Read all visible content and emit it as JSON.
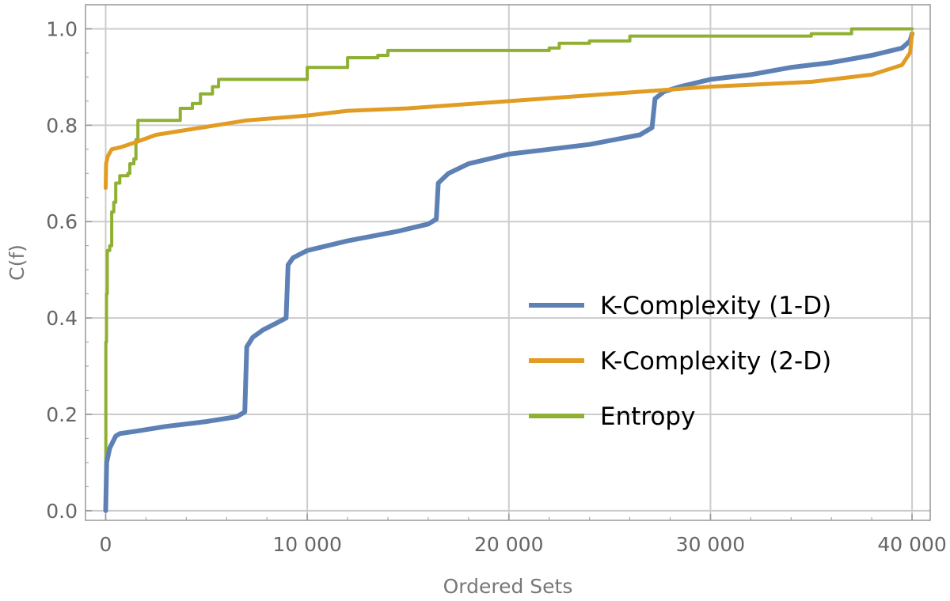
{
  "chart_data": {
    "type": "line",
    "title": "",
    "xlabel": "Ordered Sets",
    "ylabel": "C(f)",
    "xlim": [
      -1000,
      40900
    ],
    "ylim": [
      -0.02,
      1.05
    ],
    "grid": true,
    "legend_position": "right",
    "x_ticks": [
      0,
      10000,
      20000,
      30000,
      40000
    ],
    "x_tick_labels": [
      "0",
      "10 000",
      "20 000",
      "30 000",
      "40 000"
    ],
    "y_ticks": [
      0.0,
      0.2,
      0.4,
      0.6,
      0.8,
      1.0
    ],
    "y_tick_labels": [
      "0.0",
      "0.2",
      "0.4",
      "0.6",
      "0.8",
      "1.0"
    ],
    "series": [
      {
        "name": "K-Complexity (1-D)",
        "color": "#5e81b5",
        "step": false,
        "points": [
          [
            0,
            0
          ],
          [
            50,
            0.1
          ],
          [
            200,
            0.13
          ],
          [
            500,
            0.155
          ],
          [
            700,
            0.16
          ],
          [
            1500,
            0.165
          ],
          [
            3000,
            0.175
          ],
          [
            5000,
            0.185
          ],
          [
            6500,
            0.195
          ],
          [
            6900,
            0.205
          ],
          [
            7000,
            0.34
          ],
          [
            7300,
            0.36
          ],
          [
            7800,
            0.375
          ],
          [
            8500,
            0.39
          ],
          [
            8950,
            0.4
          ],
          [
            9050,
            0.51
          ],
          [
            9300,
            0.525
          ],
          [
            10000,
            0.54
          ],
          [
            12000,
            0.56
          ],
          [
            14500,
            0.58
          ],
          [
            16000,
            0.595
          ],
          [
            16400,
            0.605
          ],
          [
            16500,
            0.68
          ],
          [
            17000,
            0.7
          ],
          [
            18000,
            0.72
          ],
          [
            20000,
            0.74
          ],
          [
            22000,
            0.75
          ],
          [
            24000,
            0.76
          ],
          [
            26500,
            0.78
          ],
          [
            27100,
            0.795
          ],
          [
            27250,
            0.855
          ],
          [
            27700,
            0.87
          ],
          [
            28500,
            0.88
          ],
          [
            30000,
            0.895
          ],
          [
            32000,
            0.905
          ],
          [
            34000,
            0.92
          ],
          [
            36000,
            0.93
          ],
          [
            38000,
            0.945
          ],
          [
            39500,
            0.96
          ],
          [
            39900,
            0.975
          ],
          [
            40000,
            0.99
          ]
        ]
      },
      {
        "name": "K-Complexity (2-D)",
        "color": "#e19c24",
        "step": false,
        "points": [
          [
            0,
            0.67
          ],
          [
            20,
            0.72
          ],
          [
            100,
            0.735
          ],
          [
            300,
            0.75
          ],
          [
            800,
            0.755
          ],
          [
            1500,
            0.765
          ],
          [
            2500,
            0.78
          ],
          [
            4000,
            0.79
          ],
          [
            5500,
            0.8
          ],
          [
            7000,
            0.81
          ],
          [
            10000,
            0.82
          ],
          [
            12000,
            0.83
          ],
          [
            15000,
            0.835
          ],
          [
            20000,
            0.85
          ],
          [
            25000,
            0.865
          ],
          [
            30000,
            0.88
          ],
          [
            35000,
            0.89
          ],
          [
            38000,
            0.905
          ],
          [
            39500,
            0.925
          ],
          [
            39900,
            0.95
          ],
          [
            40000,
            0.99
          ]
        ]
      },
      {
        "name": "Entropy",
        "color": "#8fb032",
        "step": true,
        "points": [
          [
            0,
            0
          ],
          [
            10,
            0.35
          ],
          [
            40,
            0.45
          ],
          [
            80,
            0.54
          ],
          [
            200,
            0.55
          ],
          [
            300,
            0.62
          ],
          [
            400,
            0.64
          ],
          [
            500,
            0.68
          ],
          [
            700,
            0.695
          ],
          [
            1100,
            0.7
          ],
          [
            1200,
            0.72
          ],
          [
            1400,
            0.73
          ],
          [
            1500,
            0.77
          ],
          [
            1600,
            0.81
          ],
          [
            3700,
            0.835
          ],
          [
            4300,
            0.845
          ],
          [
            4700,
            0.865
          ],
          [
            5300,
            0.88
          ],
          [
            5600,
            0.895
          ],
          [
            10000,
            0.92
          ],
          [
            12000,
            0.94
          ],
          [
            13500,
            0.945
          ],
          [
            14000,
            0.955
          ],
          [
            22000,
            0.96
          ],
          [
            22500,
            0.97
          ],
          [
            24000,
            0.975
          ],
          [
            26000,
            0.985
          ],
          [
            35000,
            0.99
          ],
          [
            37000,
            1.0
          ],
          [
            40000,
            1.0
          ]
        ]
      }
    ]
  }
}
